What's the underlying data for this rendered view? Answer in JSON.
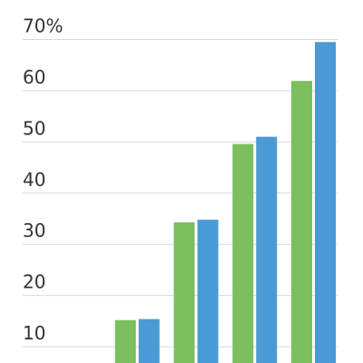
{
  "chart_data": {
    "type": "bar",
    "categories": [
      "",
      "",
      "",
      "",
      ""
    ],
    "series": [
      {
        "values": [
          0,
          15.2,
          34.3,
          49.6,
          61.9
        ],
        "color": "#7cbf5e"
      },
      {
        "values": [
          0,
          15.4,
          34.8,
          51.0,
          69.5
        ],
        "color": "#4a9ad6"
      }
    ],
    "ylim": [
      0,
      70
    ],
    "yticks": [
      {
        "value": 10,
        "label": "10"
      },
      {
        "value": 20,
        "label": "20"
      },
      {
        "value": 30,
        "label": "30"
      },
      {
        "value": 40,
        "label": "40"
      },
      {
        "value": 50,
        "label": "50"
      },
      {
        "value": 60,
        "label": "60"
      },
      {
        "value": 70,
        "label": "70%"
      }
    ],
    "grid": true,
    "legend": "none"
  }
}
